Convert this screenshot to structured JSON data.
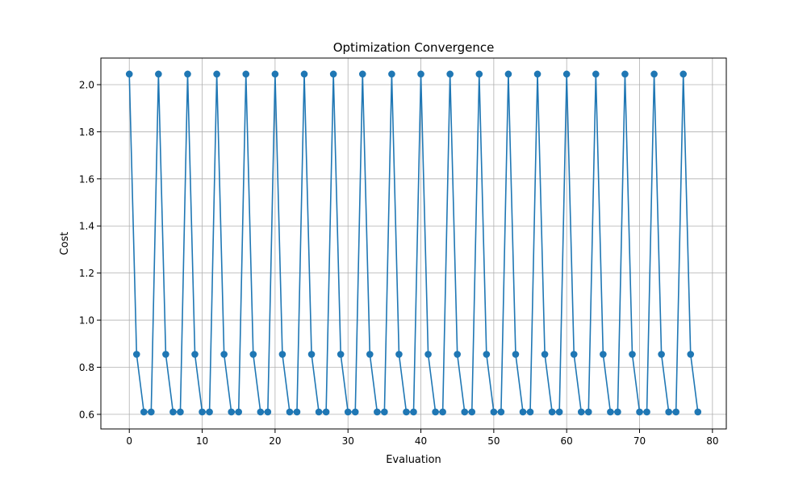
{
  "chart_data": {
    "type": "line",
    "title": "Optimization Convergence",
    "xlabel": "Evaluation",
    "ylabel": "Cost",
    "xlim": [
      -3.9,
      81.9
    ],
    "ylim": [
      0.538,
      2.113
    ],
    "xticks": [
      0,
      10,
      20,
      30,
      40,
      50,
      60,
      70,
      80
    ],
    "xtick_labels": [
      "0",
      "10",
      "20",
      "30",
      "40",
      "50",
      "60",
      "70",
      "80"
    ],
    "yticks": [
      0.6,
      0.8,
      1.0,
      1.2,
      1.4,
      1.6,
      1.8,
      2.0
    ],
    "ytick_labels": [
      "0.6",
      "0.8",
      "1.0",
      "1.2",
      "1.4",
      "1.6",
      "1.8",
      "2.0"
    ],
    "grid": true,
    "marker": "circle",
    "color": "#1f77b4",
    "series": [
      {
        "x": [
          0,
          1,
          2,
          3,
          4,
          5,
          6,
          7,
          8,
          9,
          10,
          11,
          12,
          13,
          14,
          15,
          16,
          17,
          18,
          19,
          20,
          21,
          22,
          23,
          24,
          25,
          26,
          27,
          28,
          29,
          30,
          31,
          32,
          33,
          34,
          35,
          36,
          37,
          38,
          39,
          40,
          41,
          42,
          43,
          44,
          45,
          46,
          47,
          48,
          49,
          50,
          51,
          52,
          53,
          54,
          55,
          56,
          57,
          58,
          59,
          60,
          61,
          62,
          63,
          64,
          65,
          66,
          67,
          68,
          69,
          70,
          71,
          72,
          73,
          74,
          75,
          76,
          77,
          78
        ],
        "values": [
          2.045,
          0.855,
          0.61,
          0.61,
          2.045,
          0.855,
          0.61,
          0.61,
          2.045,
          0.855,
          0.61,
          0.61,
          2.045,
          0.855,
          0.61,
          0.61,
          2.045,
          0.855,
          0.61,
          0.61,
          2.045,
          0.855,
          0.61,
          0.61,
          2.045,
          0.855,
          0.61,
          0.61,
          2.045,
          0.855,
          0.61,
          0.61,
          2.045,
          0.855,
          0.61,
          0.61,
          2.045,
          0.855,
          0.61,
          0.61,
          2.045,
          0.855,
          0.61,
          0.61,
          2.045,
          0.855,
          0.61,
          0.61,
          2.045,
          0.855,
          0.61,
          0.61,
          2.045,
          0.855,
          0.61,
          0.61,
          2.045,
          0.855,
          0.61,
          0.61,
          2.045,
          0.855,
          0.61,
          0.61,
          2.045,
          0.855,
          0.61,
          0.61,
          2.045,
          0.855,
          0.61,
          0.61,
          2.045,
          0.855,
          0.61,
          0.61,
          2.045,
          0.855,
          0.61
        ]
      }
    ]
  }
}
